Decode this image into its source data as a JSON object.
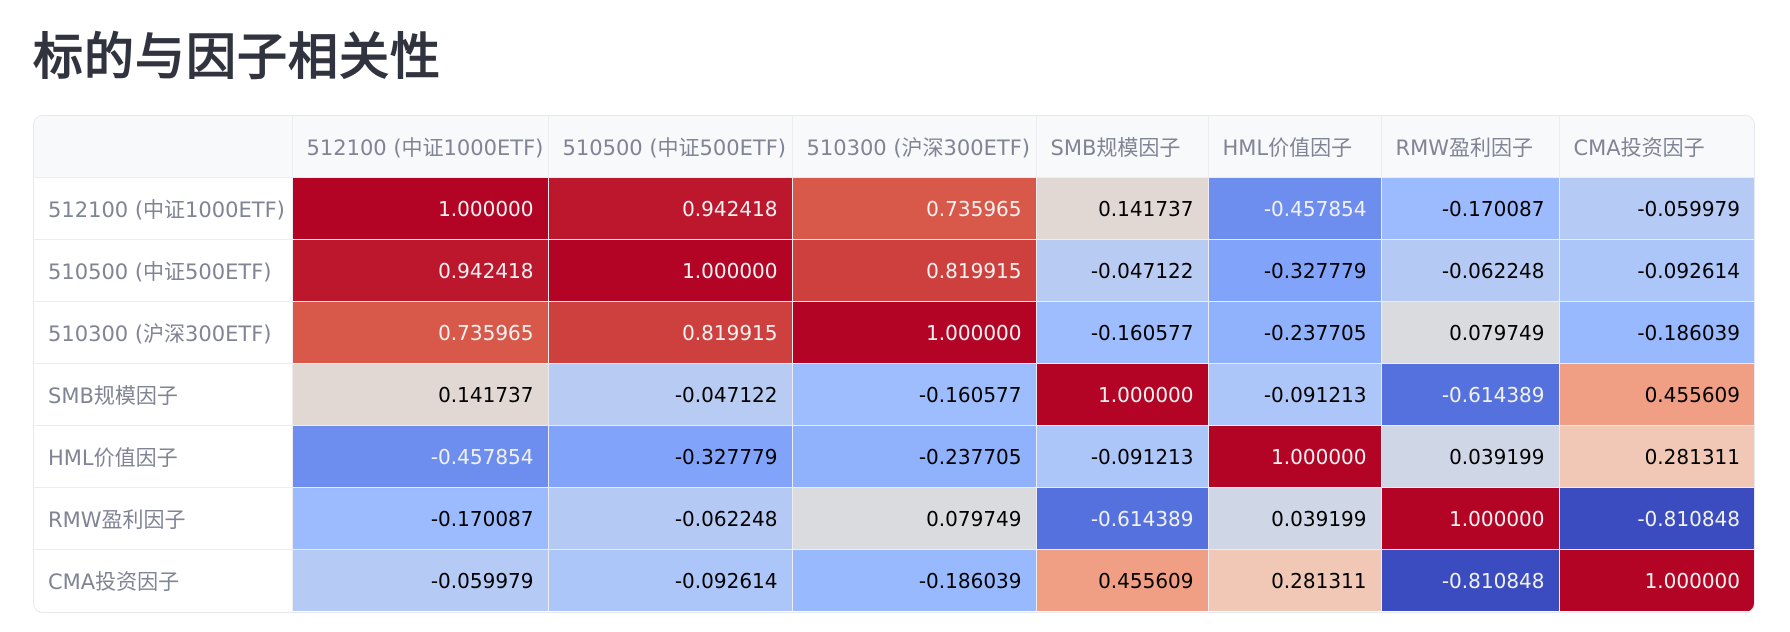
{
  "page": {
    "title": "标的与因子相关性"
  },
  "table": {
    "columns": [
      "512100 (中证1000ETF)",
      "510500 (中证500ETF)",
      "510300 (沪深300ETF)",
      "SMB规模因子",
      "HML价值因子",
      "RMW盈利因子",
      "CMA投资因子"
    ],
    "rows": [
      {
        "label": "512100 (中证1000ETF)",
        "values": [
          "1.000000",
          "0.942418",
          "0.735965",
          "0.141737",
          "-0.457854",
          "-0.170087",
          "-0.059979"
        ]
      },
      {
        "label": "510500 (中证500ETF)",
        "values": [
          "0.942418",
          "1.000000",
          "0.819915",
          "-0.047122",
          "-0.327779",
          "-0.062248",
          "-0.092614"
        ]
      },
      {
        "label": "510300 (沪深300ETF)",
        "values": [
          "0.735965",
          "0.819915",
          "1.000000",
          "-0.160577",
          "-0.237705",
          "0.079749",
          "-0.186039"
        ]
      },
      {
        "label": "SMB规模因子",
        "values": [
          "0.141737",
          "-0.047122",
          "-0.160577",
          "1.000000",
          "-0.091213",
          "-0.614389",
          "0.455609"
        ]
      },
      {
        "label": "HML价值因子",
        "values": [
          "-0.457854",
          "-0.327779",
          "-0.237705",
          "-0.091213",
          "1.000000",
          "0.039199",
          "0.281311"
        ]
      },
      {
        "label": "RMW盈利因子",
        "values": [
          "-0.170087",
          "-0.062248",
          "0.079749",
          "-0.614389",
          "0.039199",
          "1.000000",
          "-0.810848"
        ]
      },
      {
        "label": "CMA投资因子",
        "values": [
          "-0.059979",
          "-0.092614",
          "-0.186039",
          "0.455609",
          "0.281311",
          "-0.810848",
          "1.000000"
        ]
      }
    ],
    "colormap": "coolwarm",
    "value_range": [
      -1,
      1
    ]
  }
}
